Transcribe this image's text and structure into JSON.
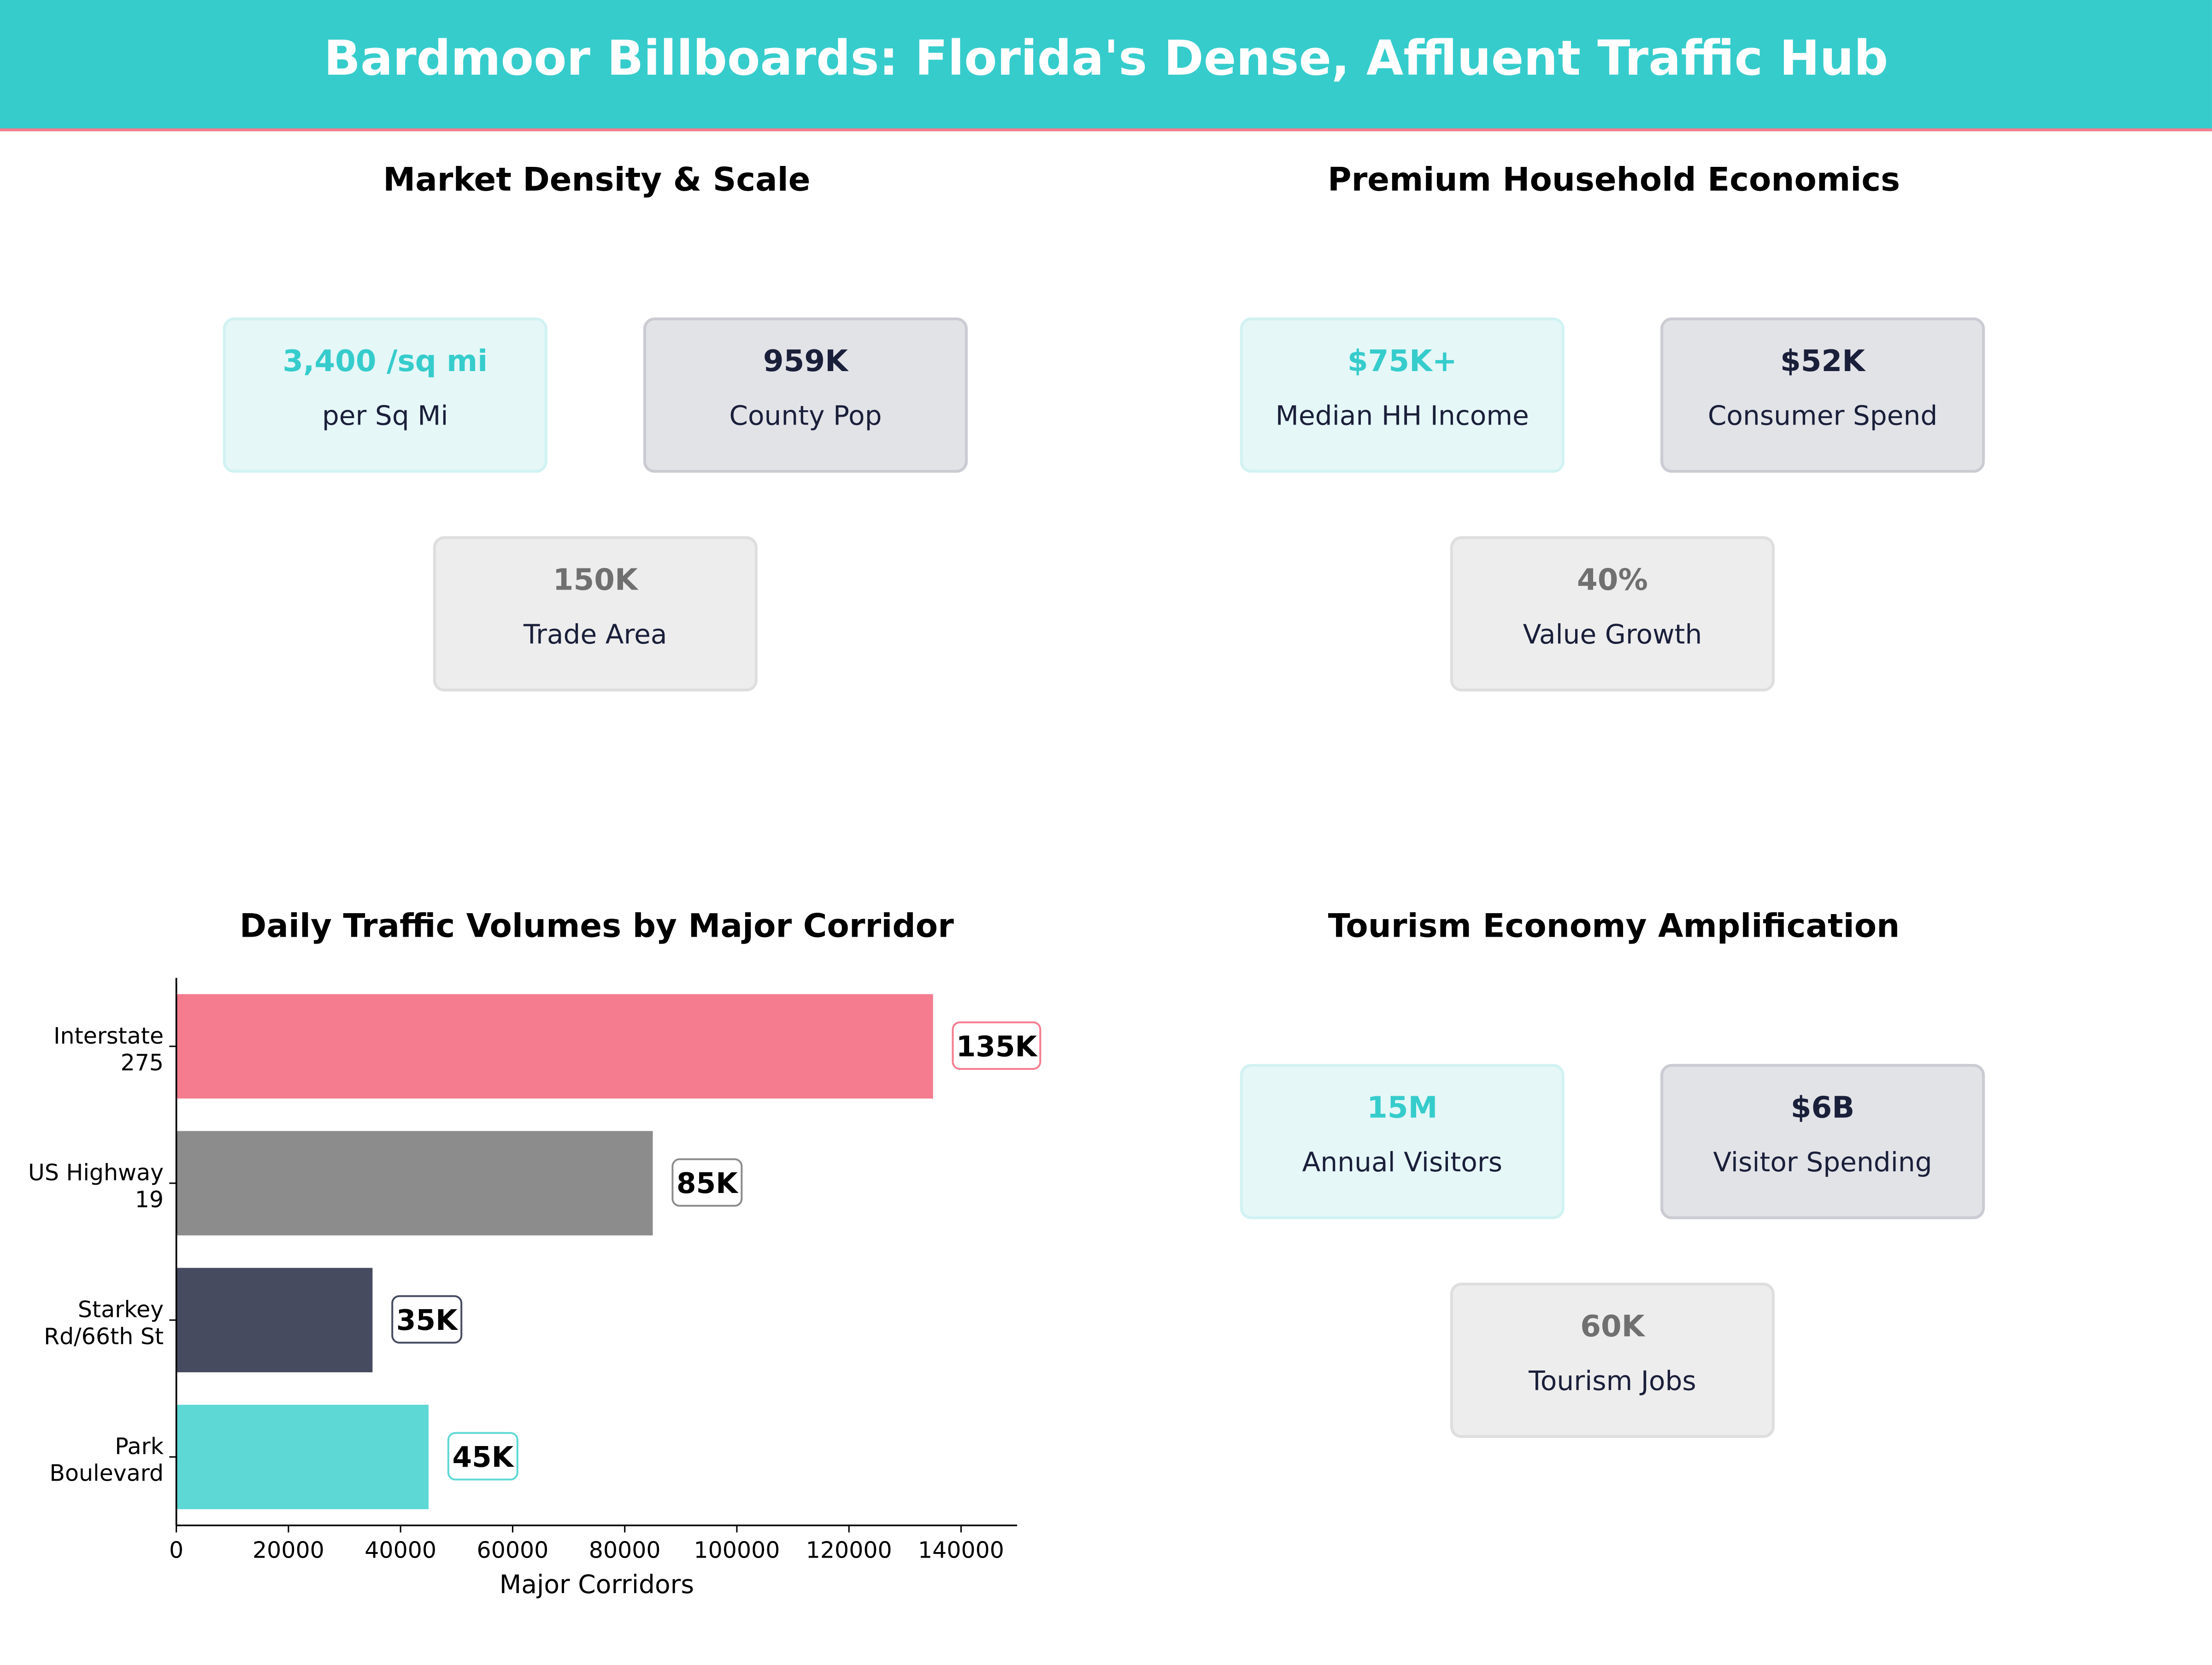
{
  "title": "Bardmoor Billboards: Florida's Dense, Affluent Traffic Hub",
  "colors": {
    "teal": "#36CCCC",
    "pink": "#F47C8E",
    "gray": "#8C8C8C",
    "navy": "#464B60",
    "light_teal": "#5DD8D4"
  },
  "panels": {
    "density": {
      "title": "Market Density & Scale",
      "cards": [
        {
          "value": "3,400 /sq mi",
          "label": "per Sq Mi"
        },
        {
          "value": "959K",
          "label": "County Pop"
        },
        {
          "value": "150K",
          "label": "Trade Area"
        }
      ]
    },
    "economics": {
      "title": "Premium Household Economics",
      "cards": [
        {
          "value": "$75K+",
          "label": "Median HH Income"
        },
        {
          "value": "$52K",
          "label": "Consumer Spend"
        },
        {
          "value": "40%",
          "label": "Value Growth"
        }
      ]
    },
    "tourism": {
      "title": "Tourism Economy Amplification",
      "cards": [
        {
          "value": "15M",
          "label": "Annual Visitors"
        },
        {
          "value": "$6B",
          "label": "Visitor Spending"
        },
        {
          "value": "60K",
          "label": "Tourism Jobs"
        }
      ]
    }
  },
  "chart_data": {
    "type": "bar",
    "orientation": "horizontal",
    "title": "Daily Traffic Volumes by Major Corridor",
    "xlabel": "Major Corridors",
    "ylabel": "",
    "categories": [
      [
        "Interstate",
        "275"
      ],
      [
        "US Highway",
        "19"
      ],
      [
        "Starkey",
        "Rd/66th St"
      ],
      [
        "Park",
        "Boulevard"
      ]
    ],
    "values": [
      135000,
      85000,
      35000,
      45000
    ],
    "data_labels": [
      "135K",
      "85K",
      "35K",
      "45K"
    ],
    "bar_colors": [
      "#F47C8E",
      "#8C8C8C",
      "#464B60",
      "#5DD8D4"
    ],
    "xlim": [
      0,
      150000
    ],
    "xticks": [
      0,
      20000,
      40000,
      60000,
      80000,
      100000,
      120000,
      140000
    ],
    "xtick_labels": [
      "0",
      "20000",
      "40000",
      "60000",
      "80000",
      "100000",
      "120000",
      "140000"
    ],
    "grid": false,
    "legend": "none"
  }
}
